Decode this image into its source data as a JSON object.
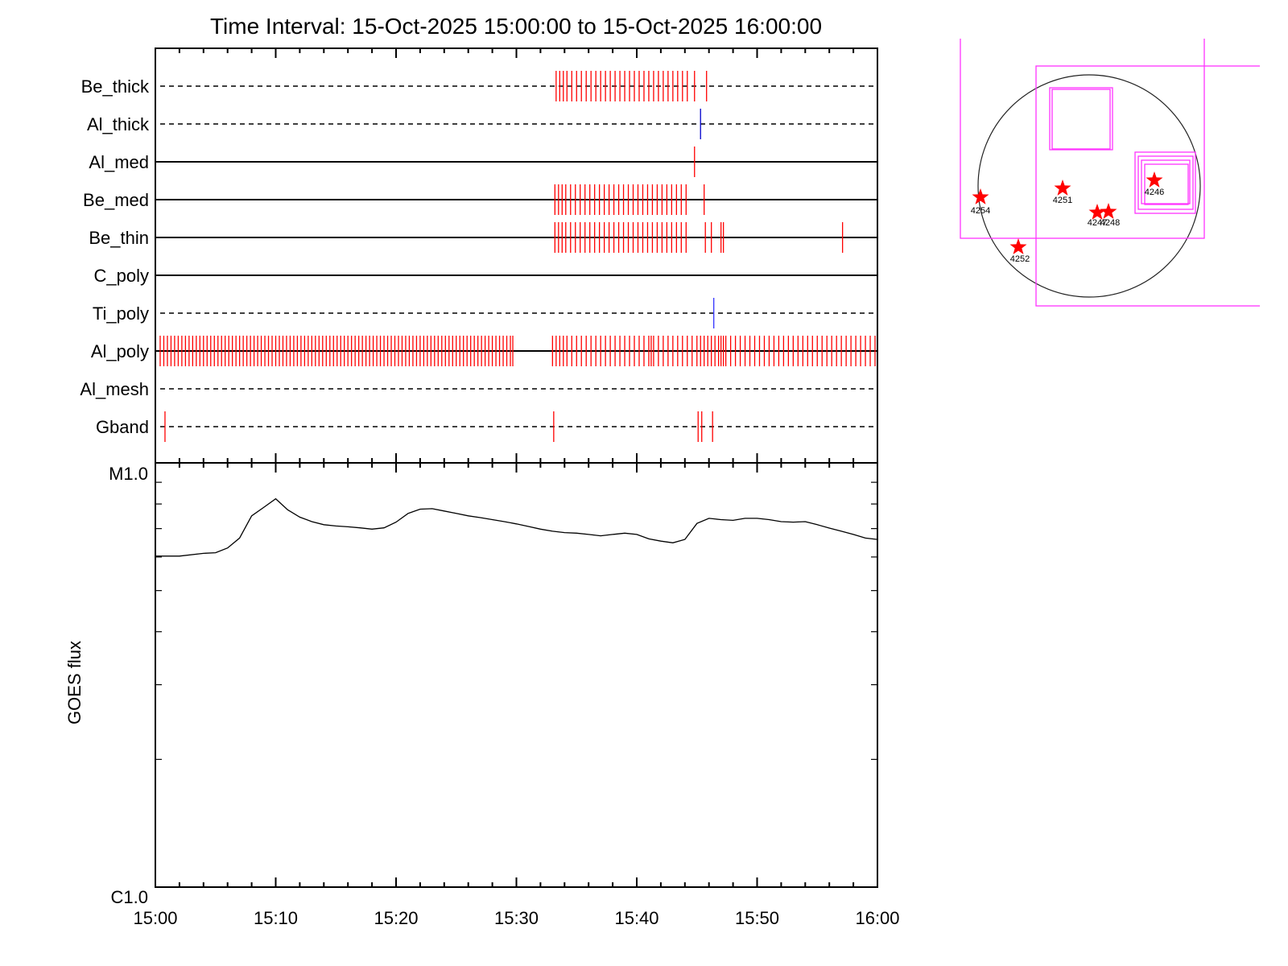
{
  "title": "Time Interval: 15-Oct-2025 15:00:00 to 15-Oct-2025 16:00:00",
  "timeline": {
    "type": "event-timeline",
    "x_range_minutes": [
      0,
      60
    ],
    "rows": [
      {
        "label": "Be_thick",
        "line": "dashed",
        "events": [
          {
            "color": "#ff0000",
            "t": [
              33.3,
              33.6,
              33.9,
              34.2,
              34.6,
              35.0,
              35.4,
              35.8,
              36.2,
              36.6,
              37.0,
              37.4,
              37.8,
              38.2,
              38.6,
              39.0,
              39.4,
              39.8,
              40.2,
              40.6,
              41.0,
              41.4,
              41.8,
              42.2,
              42.6,
              43.0,
              43.4,
              43.8,
              44.2,
              44.8,
              45.8
            ]
          }
        ]
      },
      {
        "label": "Al_thick",
        "line": "dashed",
        "events": [
          {
            "color": "#0000cc",
            "t": [
              45.3
            ]
          }
        ]
      },
      {
        "label": "Al_med",
        "line": "solid",
        "events": [
          {
            "color": "#ff0000",
            "t": [
              44.8
            ]
          }
        ]
      },
      {
        "label": "Be_med",
        "line": "solid",
        "events": [
          {
            "color": "#ff0000",
            "t": [
              33.2,
              33.5,
              33.8,
              34.1,
              34.5,
              34.9,
              35.3,
              35.7,
              36.1,
              36.5,
              36.9,
              37.3,
              37.7,
              38.1,
              38.5,
              38.9,
              39.3,
              39.7,
              40.1,
              40.5,
              40.9,
              41.3,
              41.7,
              42.1,
              42.5,
              42.9,
              43.3,
              43.7,
              44.1,
              45.6
            ]
          }
        ]
      },
      {
        "label": "Be_thin",
        "line": "solid",
        "events": [
          {
            "color": "#ff0000",
            "t": [
              33.2,
              33.5,
              33.8,
              34.1,
              34.5,
              34.9,
              35.3,
              35.7,
              36.1,
              36.5,
              36.9,
              37.3,
              37.7,
              38.1,
              38.5,
              38.9,
              39.3,
              39.7,
              40.1,
              40.5,
              40.9,
              41.3,
              41.7,
              42.1,
              42.5,
              42.9,
              43.3,
              43.7,
              44.1,
              45.7,
              46.2,
              47.0,
              47.2,
              57.1
            ]
          }
        ]
      },
      {
        "label": "C_poly",
        "line": "solid",
        "events": []
      },
      {
        "label": "Ti_poly",
        "line": "dashed",
        "events": [
          {
            "color": "#3333ff",
            "t": [
              46.4
            ]
          }
        ]
      },
      {
        "label": "Al_poly",
        "line": "solid",
        "events": [
          {
            "color": "#ff0000",
            "t": [
              0.4,
              0.7,
              1.0,
              1.3,
              1.6,
              1.9,
              2.2,
              2.5,
              2.8,
              3.1,
              3.4,
              3.7,
              4.0,
              4.3,
              4.6,
              4.9,
              5.2,
              5.5,
              5.8,
              6.1,
              6.4,
              6.7,
              7.0,
              7.3,
              7.6,
              7.9,
              8.2,
              8.5,
              8.8,
              9.1,
              9.4,
              9.7,
              10.0,
              10.3,
              10.6,
              10.9,
              11.2,
              11.5,
              11.8,
              12.1,
              12.4,
              12.7,
              13.0,
              13.3,
              13.6,
              13.9,
              14.2,
              14.5,
              14.8,
              15.1,
              15.4,
              15.7,
              16.0,
              16.3,
              16.6,
              16.9,
              17.2,
              17.5,
              17.8,
              18.1,
              18.4,
              18.7,
              19.0,
              19.3,
              19.6,
              19.9,
              20.2,
              20.5,
              20.8,
              21.1,
              21.4,
              21.7,
              22.0,
              22.3,
              22.6,
              22.9,
              23.2,
              23.5,
              23.8,
              24.1,
              24.4,
              24.7,
              25.0,
              25.3,
              25.6,
              25.9,
              26.2,
              26.5,
              26.8,
              27.1,
              27.4,
              27.7,
              28.0,
              28.3,
              28.6,
              28.9,
              29.2,
              29.5,
              29.7,
              33.0,
              33.3,
              33.6,
              33.9,
              34.2,
              34.6,
              35.0,
              35.4,
              35.8,
              36.2,
              36.6,
              37.0,
              37.4,
              37.8,
              38.2,
              38.6,
              39.0,
              39.4,
              39.8,
              40.2,
              40.6,
              41.0,
              41.2,
              41.4,
              41.8,
              42.2,
              42.6,
              43.0,
              43.4,
              43.8,
              44.2,
              44.6,
              45.0,
              45.3,
              45.6,
              45.9,
              46.2,
              46.5,
              46.8,
              47.0,
              47.2,
              47.4,
              47.8,
              48.2,
              48.6,
              49.0,
              49.4,
              49.8,
              50.2,
              50.6,
              51.0,
              51.4,
              51.8,
              52.2,
              52.6,
              53.0,
              53.4,
              53.8,
              54.2,
              54.6,
              55.0,
              55.4,
              55.8,
              56.2,
              56.6,
              57.0,
              57.4,
              57.8,
              58.2,
              58.6,
              59.0,
              59.4,
              59.8
            ]
          }
        ]
      },
      {
        "label": "Al_mesh",
        "line": "dashed",
        "events": []
      },
      {
        "label": "Gband",
        "line": "dashed",
        "events": [
          {
            "color": "#ff0000",
            "t": [
              0.8,
              33.1,
              45.1,
              45.4,
              46.3
            ]
          }
        ]
      }
    ]
  },
  "chart_data": {
    "type": "line",
    "title": "Time Interval: 15-Oct-2025 15:00:00 to 15-Oct-2025 16:00:00",
    "xlabel": "",
    "ylabel": "GOES flux",
    "x_ticks": [
      "15:00",
      "15:10",
      "15:20",
      "15:30",
      "15:40",
      "15:50",
      "16:00"
    ],
    "y_ticks": [
      "M1.0",
      "C1.0"
    ],
    "y_scale": "log",
    "y_range": [
      1e-06,
      1e-05
    ],
    "x_range_minutes": [
      0,
      60
    ],
    "series": [
      {
        "color": "#000000",
        "x": [
          0,
          2,
          4,
          5,
          6,
          7,
          8,
          9,
          10,
          11,
          12,
          13,
          14,
          15,
          16,
          17,
          18,
          19,
          20,
          21,
          22,
          23,
          24,
          25,
          26,
          27,
          28,
          29,
          30,
          31,
          32,
          33,
          34,
          35,
          36,
          37,
          38,
          39,
          40,
          41,
          42,
          43,
          44,
          45,
          46,
          47,
          48,
          49,
          50,
          51,
          52,
          53,
          54,
          55,
          56,
          57,
          58,
          59,
          60
        ],
        "y": [
          6.03e-06,
          6.03e-06,
          6.12e-06,
          6.14e-06,
          6.3e-06,
          6.65e-06,
          7.5e-06,
          7.85e-06,
          8.23e-06,
          7.75e-06,
          7.45e-06,
          7.27e-06,
          7.15e-06,
          7.1e-06,
          7.07e-06,
          7.03e-06,
          6.98e-06,
          7.03e-06,
          7.25e-06,
          7.6e-06,
          7.78e-06,
          7.8e-06,
          7.7e-06,
          7.6e-06,
          7.5e-06,
          7.43e-06,
          7.35e-06,
          7.27e-06,
          7.18e-06,
          7.08e-06,
          6.98e-06,
          6.9e-06,
          6.85e-06,
          6.83e-06,
          6.78e-06,
          6.73e-06,
          6.78e-06,
          6.83e-06,
          6.78e-06,
          6.62e-06,
          6.54e-06,
          6.48e-06,
          6.6e-06,
          7.2e-06,
          7.4e-06,
          7.35e-06,
          7.32e-06,
          7.4e-06,
          7.4e-06,
          7.35e-06,
          7.27e-06,
          7.25e-06,
          7.27e-06,
          7.15e-06,
          7.02e-06,
          6.9e-06,
          6.78e-06,
          6.65e-06,
          6.6e-06
        ]
      }
    ]
  },
  "sun_map": {
    "regions": [
      {
        "label": "4254",
        "color": "#ff0000"
      },
      {
        "label": "4251",
        "color": "#ff0000"
      },
      {
        "label": "4246",
        "color": "#ff0000"
      },
      {
        "label": "4247",
        "color": "#ff0000"
      },
      {
        "label": "4248",
        "color": "#ff0000"
      },
      {
        "label": "4252",
        "color": "#ff0000"
      }
    ],
    "fov_color": "#ff33ff",
    "limb_color": "#000000"
  }
}
